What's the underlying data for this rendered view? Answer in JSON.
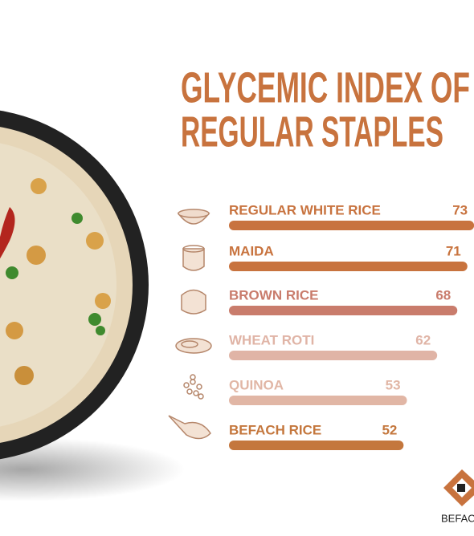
{
  "chart_data": {
    "type": "bar",
    "orientation": "horizontal",
    "title": "GLYCEMIC  INDEX OF",
    "subtitle": "REGULAR STAPLES",
    "categories": [
      "REGULAR WHITE RICE",
      "MAIDA",
      "BROWN RICE",
      "WHEAT ROTI",
      "QUINOA",
      "BEFACH RICE"
    ],
    "values": [
      73,
      71,
      68,
      62,
      53,
      52
    ],
    "colors": [
      "#c8733f",
      "#c8733e",
      "#c97c6c",
      "#e0b4a6",
      "#e1b6a5",
      "#c4773d"
    ],
    "brand": "BEFACH"
  }
}
